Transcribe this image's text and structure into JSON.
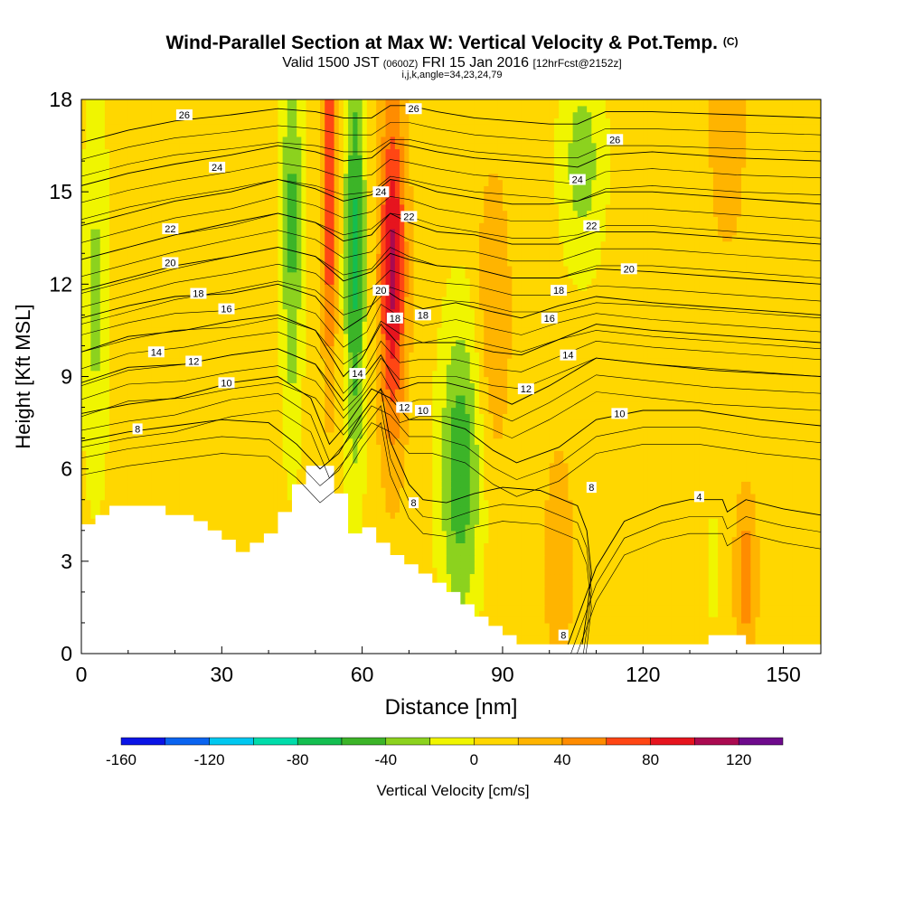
{
  "title": {
    "main": "Wind-Parallel Section at Max W: Vertical Velocity & Pot.Temp.",
    "copyright": "(C)",
    "valid_prefix": "Valid 1500 JST",
    "utc": "(0600Z)",
    "valid_date": "FRI 15 Jan 2016",
    "forecast": "[12hrFcst@2152z]",
    "indices": "i,j,k,angle=34,23,24,79"
  },
  "chart_data": {
    "type": "heatmap",
    "title": "Wind-Parallel Section at Max W: Vertical Velocity & Pot.Temp.",
    "xlabel": "Distance [nm]",
    "ylabel": "Height [Kft MSL]",
    "xlim": [
      0,
      158
    ],
    "ylim": [
      0,
      18
    ],
    "xticks": [
      0,
      30,
      60,
      90,
      120,
      150
    ],
    "yticks": [
      0,
      3,
      6,
      9,
      12,
      15,
      18
    ],
    "grid": false,
    "colorbar": {
      "label": "Vertical Velocity [cm/s]",
      "placement": "bottom",
      "bins": [
        {
          "from": -160,
          "to": -140,
          "color": "#0a14e6"
        },
        {
          "from": -140,
          "to": -120,
          "color": "#0a64f0"
        },
        {
          "from": -120,
          "to": -100,
          "color": "#00c8f0"
        },
        {
          "from": -100,
          "to": -80,
          "color": "#00dcaa"
        },
        {
          "from": -80,
          "to": -60,
          "color": "#14be50"
        },
        {
          "from": -60,
          "to": -40,
          "color": "#3cb428"
        },
        {
          "from": -40,
          "to": -20,
          "color": "#8cd21e"
        },
        {
          "from": -20,
          "to": 0,
          "color": "#f0f500"
        },
        {
          "from": 0,
          "to": 20,
          "color": "#ffd700"
        },
        {
          "from": 20,
          "to": 40,
          "color": "#ffb400"
        },
        {
          "from": 40,
          "to": 60,
          "color": "#ff8c00"
        },
        {
          "from": 60,
          "to": 80,
          "color": "#ff4614"
        },
        {
          "from": 80,
          "to": 100,
          "color": "#e6141e"
        },
        {
          "from": 100,
          "to": 120,
          "color": "#aa0a50"
        },
        {
          "from": 120,
          "to": 140,
          "color": "#6e0a8c"
        }
      ],
      "tick_labels": [
        "-160",
        "-120",
        "-80",
        "-40",
        "0",
        "40",
        "80",
        "120"
      ],
      "tick_values": [
        -160,
        -120,
        -80,
        -40,
        0,
        40,
        80,
        120
      ]
    },
    "background_value": 10,
    "velocity_features": [
      {
        "x": 3,
        "y": 11.5,
        "sx": 2.2,
        "sy": 4.5,
        "value": -35
      },
      {
        "x": 45,
        "y": 14,
        "sx": 1.6,
        "sy": 5,
        "value": -55
      },
      {
        "x": 53,
        "y": 15,
        "sx": 1.0,
        "sy": 4,
        "value": 75
      },
      {
        "x": 58.5,
        "y": 13,
        "sx": 1.6,
        "sy": 5,
        "value": -75
      },
      {
        "x": 66.5,
        "y": 12.5,
        "sx": 2.0,
        "sy": 3.8,
        "value": 95
      },
      {
        "x": 81,
        "y": 6,
        "sx": 3.2,
        "sy": 3.5,
        "value": -65
      },
      {
        "x": 107,
        "y": 16,
        "sx": 3.5,
        "sy": 2.5,
        "value": -40
      },
      {
        "x": 88,
        "y": 11,
        "sx": 2.5,
        "sy": 3.2,
        "value": 30
      },
      {
        "x": 102,
        "y": 3,
        "sx": 2.0,
        "sy": 2.5,
        "value": 30
      },
      {
        "x": 142,
        "y": 2.5,
        "sx": 1.6,
        "sy": 1.8,
        "value": 45
      },
      {
        "x": 138,
        "y": 17,
        "sx": 2.5,
        "sy": 2.5,
        "value": 30
      },
      {
        "x": 135,
        "y": 2.8,
        "sx": 0.6,
        "sy": 1.2,
        "value": -35
      }
    ],
    "terrain": {
      "x": [
        0,
        3,
        6,
        9,
        18,
        24,
        27,
        30,
        33,
        36,
        39,
        42,
        45,
        48,
        51,
        54,
        57,
        60,
        63,
        66,
        69,
        72,
        75,
        78,
        81,
        84,
        87,
        90,
        93,
        128,
        129,
        134,
        141,
        142,
        158
      ],
      "height": [
        4.2,
        4.5,
        4.8,
        4.8,
        4.5,
        4.3,
        4.0,
        3.7,
        3.3,
        3.6,
        3.9,
        4.6,
        5.5,
        6.1,
        6.1,
        5.2,
        3.9,
        4.1,
        3.6,
        3.2,
        2.9,
        2.6,
        2.3,
        2.0,
        1.6,
        1.2,
        0.9,
        0.6,
        0.3,
        0.3,
        0.3,
        0.6,
        0.6,
        0.3,
        0.3
      ]
    },
    "contours": [
      {
        "label": "4",
        "pts": [
          [
            104,
            0.3
          ],
          [
            110,
            2.8
          ],
          [
            116,
            4.3
          ],
          [
            124,
            4.8
          ],
          [
            130,
            5.0
          ],
          [
            137,
            5.0
          ],
          [
            138,
            4.6
          ],
          [
            142,
            5.0
          ],
          [
            150,
            4.7
          ],
          [
            158,
            4.5
          ]
        ]
      },
      {
        "label": "8",
        "pts": [
          [
            0,
            6.9
          ],
          [
            10,
            7.2
          ],
          [
            20,
            7.4
          ],
          [
            30,
            7.6
          ],
          [
            40,
            7.5
          ],
          [
            46,
            6.8
          ],
          [
            51,
            6.0
          ],
          [
            55,
            6.5
          ],
          [
            60,
            7.8
          ],
          [
            64,
            8.6
          ],
          [
            66,
            6.9
          ],
          [
            70,
            5.5
          ],
          [
            73,
            5.0
          ],
          [
            78,
            4.9
          ],
          [
            84,
            5.2
          ],
          [
            90,
            5.4
          ],
          [
            98,
            5.3
          ],
          [
            106,
            4.8
          ],
          [
            108,
            4.0
          ],
          [
            109,
            2.6
          ],
          [
            108,
            1.3
          ],
          [
            107,
            0.3
          ]
        ]
      },
      {
        "label": "10",
        "pts": [
          [
            0,
            7.8
          ],
          [
            10,
            8.1
          ],
          [
            20,
            8.3
          ],
          [
            32,
            8.8
          ],
          [
            42,
            9.0
          ],
          [
            49,
            8.3
          ],
          [
            53,
            6.8
          ],
          [
            57,
            7.5
          ],
          [
            62,
            8.6
          ],
          [
            66,
            8.3
          ],
          [
            70,
            7.6
          ],
          [
            75,
            7.6
          ],
          [
            82,
            7.3
          ],
          [
            88,
            6.6
          ],
          [
            93,
            6.2
          ],
          [
            102,
            6.7
          ],
          [
            110,
            7.6
          ],
          [
            120,
            7.9
          ],
          [
            132,
            7.9
          ],
          [
            145,
            7.6
          ],
          [
            158,
            7.4
          ]
        ]
      },
      {
        "label": "12",
        "pts": [
          [
            0,
            8.8
          ],
          [
            10,
            9.3
          ],
          [
            22,
            9.4
          ],
          [
            32,
            9.7
          ],
          [
            42,
            9.9
          ],
          [
            50,
            9.4
          ],
          [
            56,
            8.2
          ],
          [
            60,
            8.9
          ],
          [
            64,
            9.7
          ],
          [
            68,
            8.6
          ],
          [
            72,
            8.8
          ],
          [
            78,
            8.8
          ],
          [
            86,
            8.5
          ],
          [
            92,
            8.1
          ],
          [
            100,
            8.7
          ],
          [
            110,
            9.6
          ],
          [
            122,
            9.4
          ],
          [
            135,
            9.2
          ],
          [
            158,
            9.0
          ]
        ]
      },
      {
        "label": "14",
        "pts": [
          [
            0,
            9.8
          ],
          [
            10,
            10.3
          ],
          [
            22,
            10.5
          ],
          [
            32,
            10.8
          ],
          [
            42,
            11.0
          ],
          [
            50,
            10.5
          ],
          [
            56,
            9.0
          ],
          [
            60,
            9.6
          ],
          [
            64,
            10.7
          ],
          [
            68,
            10.0
          ],
          [
            72,
            10.1
          ],
          [
            80,
            10.1
          ],
          [
            88,
            9.8
          ],
          [
            94,
            9.7
          ],
          [
            102,
            10.2
          ],
          [
            110,
            10.7
          ],
          [
            122,
            10.5
          ],
          [
            140,
            10.3
          ],
          [
            158,
            10.1
          ]
        ]
      },
      {
        "label": "16",
        "pts": [
          [
            0,
            10.9
          ],
          [
            10,
            11.3
          ],
          [
            20,
            11.6
          ],
          [
            32,
            11.7
          ],
          [
            42,
            12.0
          ],
          [
            50,
            11.6
          ],
          [
            56,
            10.5
          ],
          [
            61,
            11.0
          ],
          [
            64,
            11.9
          ],
          [
            68,
            11.5
          ],
          [
            73,
            11.2
          ],
          [
            80,
            11.4
          ],
          [
            88,
            11.1
          ],
          [
            94,
            10.9
          ],
          [
            102,
            11.3
          ],
          [
            110,
            11.6
          ],
          [
            122,
            11.4
          ],
          [
            140,
            11.2
          ],
          [
            158,
            11.0
          ]
        ]
      },
      {
        "label": "18",
        "pts": [
          [
            0,
            11.8
          ],
          [
            10,
            12.2
          ],
          [
            20,
            12.6
          ],
          [
            32,
            12.9
          ],
          [
            42,
            13.2
          ],
          [
            50,
            12.9
          ],
          [
            56,
            12.1
          ],
          [
            62,
            12.4
          ],
          [
            66,
            13.0
          ],
          [
            70,
            12.8
          ],
          [
            76,
            12.6
          ],
          [
            84,
            12.5
          ],
          [
            92,
            12.2
          ],
          [
            102,
            12.2
          ],
          [
            110,
            12.5
          ],
          [
            122,
            12.4
          ],
          [
            140,
            12.2
          ],
          [
            158,
            12.0
          ]
        ]
      },
      {
        "label": "20",
        "pts": [
          [
            0,
            12.8
          ],
          [
            10,
            13.2
          ],
          [
            20,
            13.6
          ],
          [
            32,
            14.0
          ],
          [
            42,
            14.3
          ],
          [
            50,
            14.0
          ],
          [
            56,
            13.4
          ],
          [
            62,
            13.6
          ],
          [
            66,
            14.3
          ],
          [
            70,
            14.0
          ],
          [
            76,
            13.7
          ],
          [
            84,
            13.6
          ],
          [
            92,
            13.3
          ],
          [
            102,
            13.3
          ],
          [
            110,
            13.7
          ],
          [
            122,
            13.7
          ],
          [
            140,
            13.5
          ],
          [
            158,
            13.3
          ]
        ]
      },
      {
        "label": "22",
        "pts": [
          [
            0,
            13.9
          ],
          [
            10,
            14.3
          ],
          [
            20,
            14.7
          ],
          [
            32,
            15.0
          ],
          [
            42,
            15.4
          ],
          [
            50,
            15.1
          ],
          [
            56,
            14.7
          ],
          [
            62,
            14.9
          ],
          [
            66,
            15.4
          ],
          [
            70,
            15.3
          ],
          [
            76,
            15.0
          ],
          [
            84,
            14.8
          ],
          [
            92,
            14.6
          ],
          [
            100,
            14.6
          ],
          [
            106,
            14.7
          ],
          [
            112,
            15.0
          ],
          [
            122,
            15.0
          ],
          [
            140,
            14.8
          ],
          [
            158,
            14.6
          ]
        ]
      },
      {
        "label": "24",
        "pts": [
          [
            0,
            15.2
          ],
          [
            10,
            15.6
          ],
          [
            20,
            15.9
          ],
          [
            32,
            16.2
          ],
          [
            42,
            16.5
          ],
          [
            50,
            16.3
          ],
          [
            56,
            16.0
          ],
          [
            62,
            16.1
          ],
          [
            66,
            16.6
          ],
          [
            70,
            16.5
          ],
          [
            76,
            16.3
          ],
          [
            84,
            16.1
          ],
          [
            92,
            16.0
          ],
          [
            100,
            15.9
          ],
          [
            106,
            15.8
          ],
          [
            112,
            16.2
          ],
          [
            122,
            16.3
          ],
          [
            140,
            16.1
          ],
          [
            158,
            16.0
          ]
        ]
      },
      {
        "label": "26",
        "pts": [
          [
            0,
            16.6
          ],
          [
            10,
            17.0
          ],
          [
            20,
            17.3
          ],
          [
            32,
            17.5
          ],
          [
            42,
            17.7
          ],
          [
            50,
            17.6
          ],
          [
            56,
            17.4
          ],
          [
            62,
            17.4
          ],
          [
            66,
            17.8
          ],
          [
            70,
            17.8
          ],
          [
            76,
            17.6
          ],
          [
            84,
            17.4
          ],
          [
            92,
            17.3
          ],
          [
            100,
            17.2
          ],
          [
            106,
            17.2
          ],
          [
            112,
            17.6
          ],
          [
            122,
            17.6
          ],
          [
            140,
            17.5
          ],
          [
            158,
            17.4
          ]
        ]
      }
    ],
    "contour_labels": [
      {
        "text": "26",
        "x": 22,
        "y": 17.5
      },
      {
        "text": "26",
        "x": 71,
        "y": 17.7
      },
      {
        "text": "26",
        "x": 114,
        "y": 16.7
      },
      {
        "text": "24",
        "x": 29,
        "y": 15.8
      },
      {
        "text": "24",
        "x": 64,
        "y": 15.0
      },
      {
        "text": "24",
        "x": 106,
        "y": 15.4
      },
      {
        "text": "22",
        "x": 19,
        "y": 13.8
      },
      {
        "text": "22",
        "x": 70,
        "y": 14.2
      },
      {
        "text": "22",
        "x": 109,
        "y": 13.9
      },
      {
        "text": "20",
        "x": 19,
        "y": 12.7
      },
      {
        "text": "20",
        "x": 64,
        "y": 11.8
      },
      {
        "text": "20",
        "x": 117,
        "y": 12.5
      },
      {
        "text": "18",
        "x": 25,
        "y": 11.7
      },
      {
        "text": "18",
        "x": 67,
        "y": 10.9
      },
      {
        "text": "18",
        "x": 73,
        "y": 11.0
      },
      {
        "text": "18",
        "x": 102,
        "y": 11.8
      },
      {
        "text": "16",
        "x": 31,
        "y": 11.2
      },
      {
        "text": "16",
        "x": 100,
        "y": 10.9
      },
      {
        "text": "14",
        "x": 16,
        "y": 9.8
      },
      {
        "text": "14",
        "x": 59,
        "y": 9.1
      },
      {
        "text": "14",
        "x": 104,
        "y": 9.7
      },
      {
        "text": "12",
        "x": 24,
        "y": 9.5
      },
      {
        "text": "12",
        "x": 69,
        "y": 8.0
      },
      {
        "text": "12",
        "x": 95,
        "y": 8.6
      },
      {
        "text": "10",
        "x": 31,
        "y": 8.8
      },
      {
        "text": "10",
        "x": 73,
        "y": 7.9
      },
      {
        "text": "10",
        "x": 115,
        "y": 7.8
      },
      {
        "text": "8",
        "x": 12,
        "y": 7.3
      },
      {
        "text": "8",
        "x": 71,
        "y": 4.9
      },
      {
        "text": "8",
        "x": 109,
        "y": 5.4
      },
      {
        "text": "8",
        "x": 103,
        "y": 0.6
      },
      {
        "text": "4",
        "x": 132,
        "y": 5.1
      }
    ]
  }
}
